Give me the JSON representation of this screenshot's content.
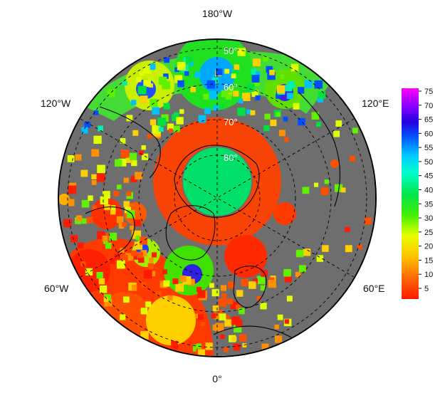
{
  "map": {
    "projection": "north polar stereographic",
    "land_color": "#6e6e6e",
    "lon_labels": {
      "top": "180°W",
      "bottom": "0°",
      "upper_left": "120°W",
      "upper_right": "120°E",
      "lower_left": "60°W",
      "lower_right": "60°E"
    },
    "lat_labels": [
      "50°",
      "60°",
      "70°",
      "80°"
    ]
  },
  "colorbar": {
    "ticks": [
      "75",
      "70",
      "65",
      "60",
      "55",
      "50",
      "45",
      "40",
      "35",
      "30",
      "25",
      "20",
      "15",
      "10",
      "5"
    ],
    "colors_top_to_bottom": [
      "#ff00ff",
      "#b000ff",
      "#3b00e0",
      "#0033ff",
      "#0090ff",
      "#00d8ff",
      "#00ffd0",
      "#00f080",
      "#00e640",
      "#40f000",
      "#c8ff00",
      "#ffee00",
      "#ffc000",
      "#ff7000",
      "#ff1a00"
    ]
  }
}
